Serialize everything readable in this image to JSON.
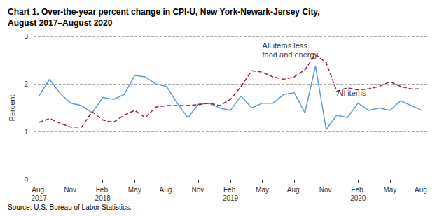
{
  "chart_data": {
    "type": "line",
    "title": "Chart 1. Over-the-year percent change in CPI-U, New York-Newark-Jersey City,\nAugust 2017–August 2020",
    "source": "Source: U.S. Bureau of Labor Statistics.",
    "ylabel": "Percent",
    "categories": [
      "Aug.\n2017",
      null,
      null,
      "Nov.",
      null,
      null,
      "Feb.\n2018",
      null,
      null,
      "May",
      null,
      null,
      "Aug.",
      null,
      null,
      "Nov.",
      null,
      null,
      "Feb.\n2019",
      null,
      null,
      "May",
      null,
      null,
      "Aug.",
      null,
      null,
      "Nov.",
      null,
      null,
      "Feb.\n2020",
      null,
      null,
      "May",
      null,
      null,
      "Aug."
    ],
    "series": [
      {
        "color": "#5b9bd5",
        "line_style": "solid",
        "values": [
          1.75,
          2.1,
          1.8,
          1.6,
          1.55,
          1.4,
          1.72,
          1.68,
          1.78,
          2.18,
          2.15,
          2.0,
          1.95,
          1.6,
          1.3,
          1.58,
          1.6,
          1.5,
          1.45,
          1.75,
          1.5,
          1.6,
          1.6,
          1.78,
          1.82,
          1.4,
          2.38,
          1.05,
          1.35,
          1.3,
          1.6,
          1.45,
          1.5,
          1.45,
          1.65,
          1.55,
          1.45
        ]
      },
      {
        "color": "#8b2252",
        "line_style": "dashed",
        "values": [
          1.2,
          1.28,
          1.18,
          1.1,
          1.1,
          1.42,
          1.25,
          1.2,
          1.35,
          1.45,
          1.3,
          1.52,
          1.55,
          1.55,
          1.55,
          1.57,
          1.6,
          1.55,
          1.68,
          1.95,
          2.28,
          2.25,
          2.15,
          2.1,
          2.15,
          2.3,
          2.62,
          2.45,
          1.85,
          1.92,
          1.88,
          1.9,
          1.95,
          2.05,
          1.95,
          1.9,
          1.9
        ]
      }
    ],
    "ylim": [
      0,
      3.0
    ],
    "yticks": [
      0,
      1,
      2,
      3
    ],
    "grid": true,
    "annotations": [
      {
        "text": "All items less\nfood and energy",
        "x": 21,
        "y": 2.52
      },
      {
        "text": "All items",
        "x": 28,
        "y": 1.72
      }
    ]
  }
}
